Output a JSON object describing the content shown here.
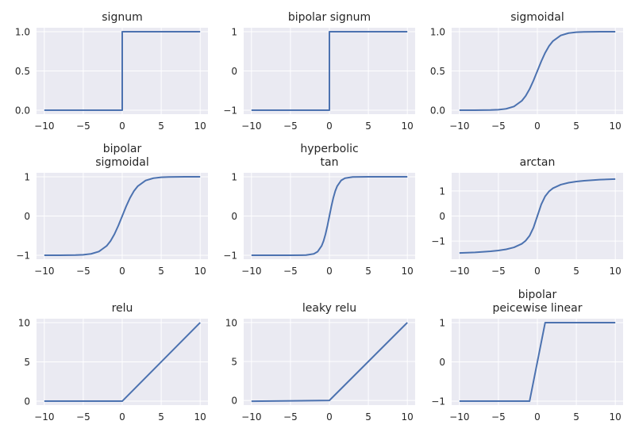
{
  "chart_data": [
    {
      "type": "line",
      "title": [
        "signum"
      ],
      "xlim": [
        -11,
        11
      ],
      "ylim": [
        -0.05,
        1.05
      ],
      "xticks": [
        -10,
        -5,
        0,
        5,
        10
      ],
      "xtick_labels": [
        "−10",
        "−5",
        "0",
        "5",
        "10"
      ],
      "yticks": [
        0,
        0.5,
        1
      ],
      "ytick_labels": [
        "0.0",
        "0.5",
        "1.0"
      ],
      "x": [
        -10,
        0,
        0,
        10
      ],
      "y": [
        0,
        0,
        1,
        1
      ]
    },
    {
      "type": "line",
      "title": [
        "bipolar signum"
      ],
      "xlim": [
        -11,
        11
      ],
      "ylim": [
        -1.1,
        1.1
      ],
      "xticks": [
        -10,
        -5,
        0,
        5,
        10
      ],
      "xtick_labels": [
        "−10",
        "−5",
        "0",
        "5",
        "10"
      ],
      "yticks": [
        -1,
        0,
        1
      ],
      "ytick_labels": [
        "−1",
        "0",
        "1"
      ],
      "x": [
        -10,
        0,
        0,
        10
      ],
      "y": [
        -1,
        -1,
        1,
        1
      ]
    },
    {
      "type": "line",
      "title": [
        "sigmoidal"
      ],
      "xlim": [
        -11,
        11
      ],
      "ylim": [
        -0.05,
        1.05
      ],
      "xticks": [
        -10,
        -5,
        0,
        5,
        10
      ],
      "xtick_labels": [
        "−10",
        "−5",
        "0",
        "5",
        "10"
      ],
      "yticks": [
        0,
        0.5,
        1
      ],
      "ytick_labels": [
        "0.0",
        "0.5",
        "1.0"
      ],
      "x": [
        -10,
        -8,
        -6,
        -5,
        -4,
        -3,
        -2,
        -1.5,
        -1,
        -0.5,
        0,
        0.5,
        1,
        1.5,
        2,
        3,
        4,
        5,
        6,
        8,
        10
      ],
      "y": [
        4.54e-05,
        0.000335,
        0.00247,
        0.00669,
        0.018,
        0.0474,
        0.1192,
        0.1824,
        0.2689,
        0.3775,
        0.5,
        0.6225,
        0.7311,
        0.8176,
        0.8808,
        0.9526,
        0.982,
        0.9933,
        0.9975,
        0.9997,
        1.0
      ]
    },
    {
      "type": "line",
      "title": [
        "bipolar",
        "sigmoidal"
      ],
      "xlim": [
        -11,
        11
      ],
      "ylim": [
        -1.1,
        1.1
      ],
      "xticks": [
        -10,
        -5,
        0,
        5,
        10
      ],
      "xtick_labels": [
        "−10",
        "−5",
        "0",
        "5",
        "10"
      ],
      "yticks": [
        -1,
        0,
        1
      ],
      "ytick_labels": [
        "−1",
        "0",
        "1"
      ],
      "x": [
        -10,
        -8,
        -6,
        -5,
        -4,
        -3,
        -2,
        -1.5,
        -1,
        -0.5,
        0,
        0.5,
        1,
        1.5,
        2,
        3,
        4,
        5,
        6,
        8,
        10
      ],
      "y": [
        -0.9999,
        -0.9993,
        -0.9951,
        -0.9866,
        -0.964,
        -0.9051,
        -0.7616,
        -0.6351,
        -0.4621,
        -0.2449,
        0,
        0.2449,
        0.4621,
        0.6351,
        0.7616,
        0.9051,
        0.964,
        0.9866,
        0.9951,
        0.9993,
        0.9999
      ]
    },
    {
      "type": "line",
      "title": [
        "hyperbolic",
        "tan"
      ],
      "xlim": [
        -11,
        11
      ],
      "ylim": [
        -1.1,
        1.1
      ],
      "xticks": [
        -10,
        -5,
        0,
        5,
        10
      ],
      "xtick_labels": [
        "−10",
        "−5",
        "0",
        "5",
        "10"
      ],
      "yticks": [
        -1,
        0,
        1
      ],
      "ytick_labels": [
        "−1",
        "0",
        "1"
      ],
      "x": [
        -10,
        -5,
        -3,
        -2,
        -1.5,
        -1,
        -0.75,
        -0.5,
        -0.25,
        0,
        0.25,
        0.5,
        0.75,
        1,
        1.5,
        2,
        3,
        5,
        10
      ],
      "y": [
        -1,
        -0.9999,
        -0.9951,
        -0.964,
        -0.9051,
        -0.7616,
        -0.6351,
        -0.4621,
        -0.2449,
        0,
        0.2449,
        0.4621,
        0.6351,
        0.7616,
        0.9051,
        0.964,
        0.9951,
        0.9999,
        1
      ]
    },
    {
      "type": "line",
      "title": [
        "arctan"
      ],
      "xlim": [
        -11,
        11
      ],
      "ylim": [
        -1.72,
        1.72
      ],
      "xticks": [
        -10,
        -5,
        0,
        5,
        10
      ],
      "xtick_labels": [
        "−10",
        "−5",
        "0",
        "5",
        "10"
      ],
      "yticks": [
        -1,
        0,
        1
      ],
      "ytick_labels": [
        "−1",
        "0",
        "1"
      ],
      "x": [
        -10,
        -8,
        -6,
        -5,
        -4,
        -3,
        -2,
        -1.5,
        -1,
        -0.5,
        0,
        0.5,
        1,
        1.5,
        2,
        3,
        4,
        5,
        6,
        8,
        10
      ],
      "y": [
        -1.4711,
        -1.4464,
        -1.4056,
        -1.3734,
        -1.3258,
        -1.249,
        -1.1071,
        -0.9828,
        -0.7854,
        -0.4636,
        0,
        0.4636,
        0.7854,
        0.9828,
        1.1071,
        1.249,
        1.3258,
        1.3734,
        1.4056,
        1.4464,
        1.4711
      ]
    },
    {
      "type": "line",
      "title": [
        "relu"
      ],
      "xlim": [
        -11,
        11
      ],
      "ylim": [
        -0.5,
        10.5
      ],
      "xticks": [
        -10,
        -5,
        0,
        5,
        10
      ],
      "xtick_labels": [
        "−10",
        "−5",
        "0",
        "5",
        "10"
      ],
      "yticks": [
        0,
        5,
        10
      ],
      "ytick_labels": [
        "0",
        "5",
        "10"
      ],
      "x": [
        -10,
        0,
        10
      ],
      "y": [
        0,
        0,
        10
      ]
    },
    {
      "type": "line",
      "title": [
        "leaky relu"
      ],
      "xlim": [
        -11,
        11
      ],
      "ylim": [
        -0.6,
        10.5
      ],
      "xticks": [
        -10,
        -5,
        0,
        5,
        10
      ],
      "xtick_labels": [
        "−10",
        "−5",
        "0",
        "5",
        "10"
      ],
      "yticks": [
        0,
        5,
        10
      ],
      "ytick_labels": [
        "0",
        "5",
        "10"
      ],
      "x": [
        -10,
        0,
        10
      ],
      "y": [
        -0.1,
        0,
        10
      ]
    },
    {
      "type": "line",
      "title": [
        "bipolar",
        "peicewise linear"
      ],
      "xlim": [
        -11,
        11
      ],
      "ylim": [
        -1.1,
        1.1
      ],
      "xticks": [
        -10,
        -5,
        0,
        5,
        10
      ],
      "xtick_labels": [
        "−10",
        "−5",
        "0",
        "5",
        "10"
      ],
      "yticks": [
        -1,
        0,
        1
      ],
      "ytick_labels": [
        "−1",
        "0",
        "1"
      ],
      "x": [
        -10,
        -1,
        1,
        10
      ],
      "y": [
        -1,
        -1,
        1,
        1
      ]
    }
  ],
  "colors": {
    "line": "#4c72b0",
    "axes_bg": "#eaeaf2",
    "grid": "#ffffff",
    "text": "#262626"
  }
}
